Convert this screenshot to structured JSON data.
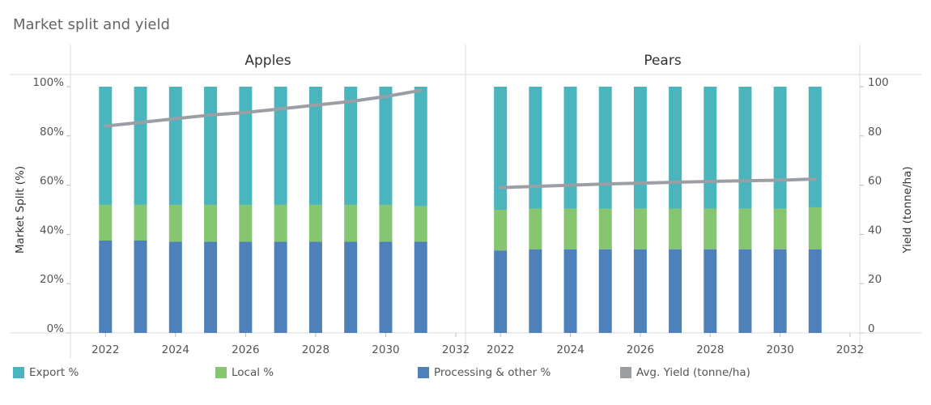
{
  "title": "Market split and yield",
  "chart_data": {
    "type": "bar",
    "subtype": "stacked-bar-with-line-overlay",
    "facets": [
      {
        "name": "Apples",
        "years": [
          2022,
          2023,
          2024,
          2025,
          2026,
          2027,
          2028,
          2029,
          2030,
          2031
        ],
        "series": {
          "processing": [
            37.5,
            37.5,
            37,
            37,
            37,
            37,
            37,
            37,
            37,
            37
          ],
          "local": [
            14.5,
            14.5,
            15,
            15,
            15,
            15,
            15,
            15,
            15,
            14.5
          ],
          "export": [
            48,
            48,
            48,
            48,
            48,
            48,
            48,
            48,
            48,
            48.5
          ],
          "yield": [
            84,
            85.5,
            87,
            88.5,
            89.5,
            91,
            92.5,
            94,
            96,
            98.5
          ]
        }
      },
      {
        "name": "Pears",
        "years": [
          2022,
          2023,
          2024,
          2025,
          2026,
          2027,
          2028,
          2029,
          2030,
          2031
        ],
        "series": {
          "processing": [
            33.5,
            34,
            34,
            34,
            34,
            34,
            34,
            34,
            34,
            34
          ],
          "local": [
            16.5,
            16.5,
            16.5,
            16.5,
            16.5,
            16.5,
            16.5,
            16.5,
            16.5,
            17
          ],
          "export": [
            50,
            49.5,
            49.5,
            49.5,
            49.5,
            49.5,
            49.5,
            49.5,
            49.5,
            49
          ],
          "yield": [
            59,
            59.5,
            60,
            60.5,
            60.8,
            61.2,
            61.5,
            61.8,
            62,
            62.5
          ]
        }
      }
    ],
    "x_ticks": [
      "2022",
      "2024",
      "2026",
      "2028",
      "2030",
      "2032"
    ],
    "xlim": [
      2021,
      2032
    ],
    "left_axis": {
      "label": "Market Split (%)",
      "ticks": [
        "0%",
        "20%",
        "40%",
        "60%",
        "80%",
        "100%"
      ],
      "ylim": [
        0,
        100
      ]
    },
    "right_axis": {
      "label": "Yield (tonne/ha)",
      "ticks": [
        "0",
        "20",
        "40",
        "60",
        "80",
        "100"
      ],
      "ylim": [
        0,
        100
      ]
    },
    "legend": {
      "placement": "bottom",
      "items": [
        {
          "key": "export",
          "label": "Export %",
          "color": "#4bb5bd"
        },
        {
          "key": "local",
          "label": "Local %",
          "color": "#86c670"
        },
        {
          "key": "processing",
          "label": "Processing & other %",
          "color": "#4e81b9"
        },
        {
          "key": "yield",
          "label": "Avg. Yield (tonne/ha)",
          "color": "#9b9fa4"
        }
      ]
    },
    "grid": false
  }
}
